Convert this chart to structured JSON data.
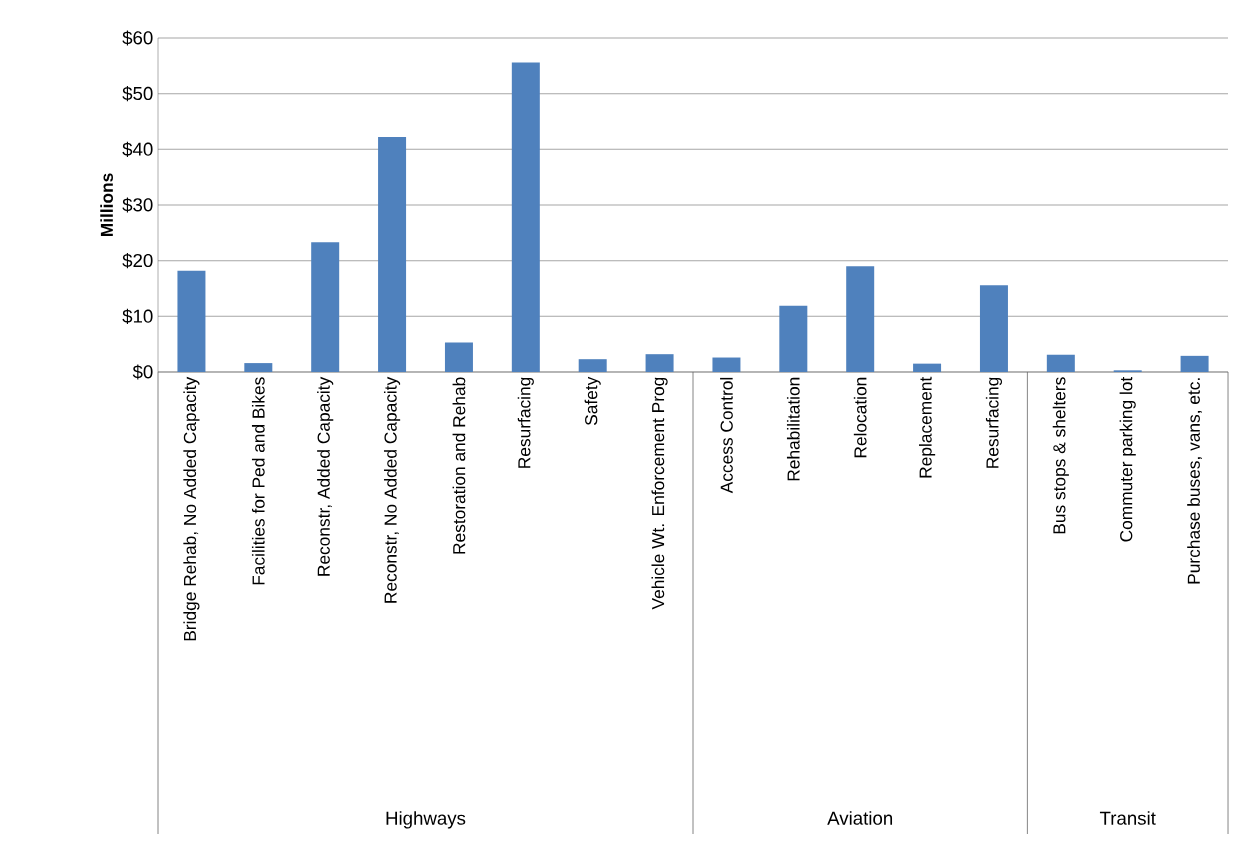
{
  "chart_data": {
    "type": "bar",
    "ylabel": "Millions",
    "categories": [
      "Bridge Rehab, No Added Capacity",
      "Facilities for Ped and Bikes",
      "Reconstr, Added Capacity",
      "Reconstr, No Added Capacity",
      "Restoration and Rehab",
      "Resurfacing",
      "Safety",
      "Vehicle Wt. Enforcement Prog",
      "Access Control",
      "Rehabilitation",
      "Relocation",
      "Replacement",
      "Resurfacing",
      "Bus stops & shelters",
      "Commuter parking lot",
      "Purchase buses, vans, etc."
    ],
    "values": [
      18.2,
      1.6,
      23.3,
      42.2,
      5.3,
      55.6,
      2.3,
      3.2,
      2.6,
      11.9,
      19.0,
      1.5,
      15.6,
      3.1,
      0.3,
      2.9
    ],
    "color": "#4f81bd",
    "ylim": [
      0,
      60
    ],
    "yticks": [
      {
        "value": 0,
        "label": "$0"
      },
      {
        "value": 10,
        "label": "$10"
      },
      {
        "value": 20,
        "label": "$20"
      },
      {
        "value": 30,
        "label": "$30"
      },
      {
        "value": 40,
        "label": "$40"
      },
      {
        "value": 50,
        "label": "$50"
      },
      {
        "value": 60,
        "label": "$60"
      }
    ],
    "grid": "y",
    "annotations": [
      "Highways",
      "Aviation",
      "Transit"
    ]
  }
}
